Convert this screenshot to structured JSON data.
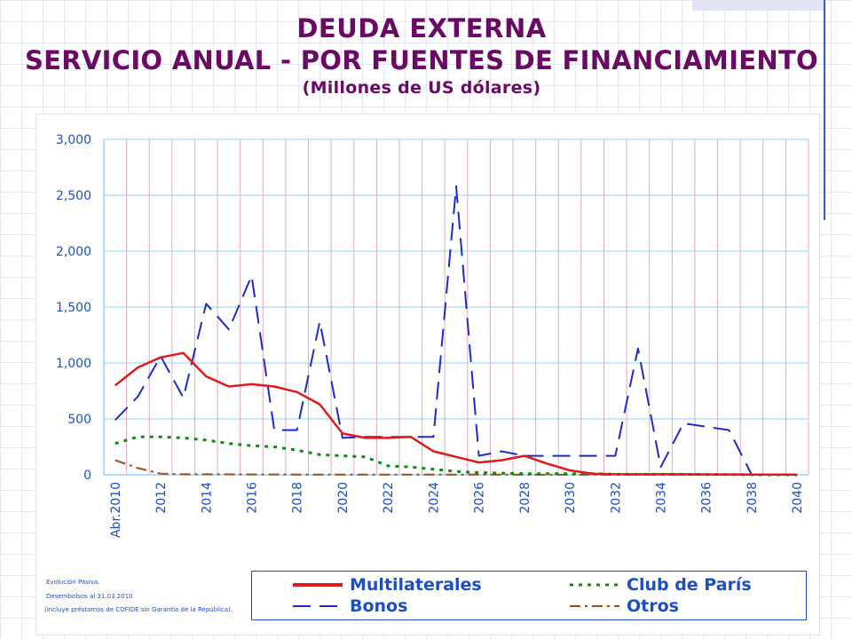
{
  "slide": {
    "title_line1": "DEUDA EXTERNA",
    "title_line2": "SERVICIO ANUAL - POR FUENTES DE FINANCIAMIENTO",
    "title_line3": "(Millones de US dólares)",
    "footnotes": [
      "Evolución Pasiva.",
      "Desembolsos al 31.03.2010",
      "(Incluye préstamos de COFIDE sin Garantía de la República)."
    ]
  },
  "colors": {
    "title": "#6a0a64",
    "axis_text": "#1e4fc1",
    "grid_h": "#8fd3ff",
    "grid_v": "#e5a6c8"
  },
  "legend": {
    "items": [
      {
        "key": "multilaterales",
        "label": "Multilaterales"
      },
      {
        "key": "club",
        "label": "Club de París"
      },
      {
        "key": "bonos",
        "label": "Bonos"
      },
      {
        "key": "otros",
        "label": "Otros"
      }
    ]
  },
  "chart_data": {
    "type": "line",
    "title": "DEUDA EXTERNA - SERVICIO ANUAL - POR FUENTES DE FINANCIAMIENTO",
    "ylabel": "Millones de US dólares",
    "xlabel": "",
    "ylim": [
      0,
      3000
    ],
    "yticks": [
      0,
      500,
      1000,
      1500,
      2000,
      2500,
      3000
    ],
    "ytick_labels": [
      "0",
      "500",
      "1,000",
      "1,500",
      "2,000",
      "2,500",
      "3,000"
    ],
    "categories": [
      "Abr.2010",
      "2011",
      "2012",
      "2013",
      "2014",
      "2015",
      "2016",
      "2017",
      "2018",
      "2019",
      "2020",
      "2021",
      "2022",
      "2023",
      "2024",
      "2025",
      "2026",
      "2027",
      "2028",
      "2029",
      "2030",
      "2031",
      "2032",
      "2033",
      "2034",
      "2035",
      "2036",
      "2037",
      "2038",
      "2039",
      "2040"
    ],
    "xtick_labels": [
      "Abr.2010",
      "2012",
      "2014",
      "2016",
      "2018",
      "2020",
      "2022",
      "2024",
      "2026",
      "2028",
      "2030",
      "2032",
      "2034",
      "2036",
      "2038",
      "2040"
    ],
    "grid": true,
    "legend_position": "bottom",
    "series": [
      {
        "name": "Multilaterales",
        "color": "#e01a1a",
        "dash": "solid",
        "values": [
          800,
          960,
          1050,
          1090,
          880,
          790,
          810,
          790,
          740,
          630,
          370,
          330,
          330,
          340,
          210,
          160,
          110,
          130,
          170,
          100,
          40,
          10,
          5,
          5,
          5,
          5,
          3,
          3,
          2,
          2,
          2
        ]
      },
      {
        "name": "Bonos",
        "color": "#1d2bc8",
        "dash": "dashed",
        "values": [
          490,
          700,
          1060,
          690,
          1530,
          1300,
          1780,
          400,
          400,
          1370,
          330,
          340,
          340,
          340,
          340,
          2580,
          170,
          210,
          170,
          170,
          170,
          170,
          170,
          1130,
          70,
          460,
          430,
          400,
          0,
          0,
          0
        ]
      },
      {
        "name": "Club de París",
        "color": "#0f8a0f",
        "dash": "dotted",
        "values": [
          280,
          340,
          340,
          330,
          310,
          280,
          260,
          250,
          220,
          180,
          170,
          160,
          80,
          70,
          50,
          30,
          20,
          15,
          10,
          10,
          10,
          10,
          5,
          5,
          5,
          5,
          3,
          2,
          1,
          0,
          0
        ]
      },
      {
        "name": "Otros",
        "color": "#a04a1a",
        "dash": "dashdot",
        "values": [
          130,
          60,
          10,
          5,
          5,
          5,
          3,
          3,
          2,
          2,
          2,
          2,
          2,
          2,
          2,
          2,
          2,
          2,
          1,
          1,
          1,
          1,
          1,
          1,
          1,
          1,
          1,
          1,
          1,
          1,
          1
        ]
      }
    ]
  }
}
